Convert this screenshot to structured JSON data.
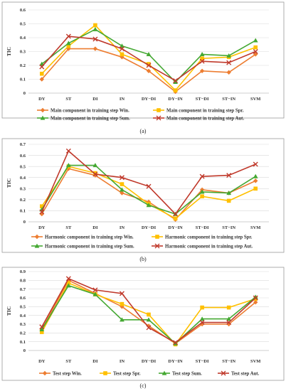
{
  "chart_data": [
    {
      "type": "line",
      "panel_caption": "(a)",
      "ylabel": "TIC",
      "ylim": [
        0,
        0.6
      ],
      "yticks": [
        "0",
        "0.1",
        "0.2",
        "0.3",
        "0.4",
        "0.5",
        "0.6"
      ],
      "grid": true,
      "legend_position": "bottom",
      "categories": [
        "DY",
        "ST",
        "DI",
        "IN",
        "DY−DI",
        "DY−IN",
        "ST−DI",
        "ST−IN",
        "SVM"
      ],
      "series": [
        {
          "name": "Main component in training step Win.",
          "color": "#ed7d31",
          "marker": "diamond",
          "values": [
            0.1,
            0.32,
            0.32,
            0.26,
            0.16,
            0.01,
            0.16,
            0.15,
            0.28
          ]
        },
        {
          "name": "Main component in training step Spr.",
          "color": "#ffc000",
          "marker": "square",
          "values": [
            0.14,
            0.34,
            0.49,
            0.28,
            0.21,
            0.02,
            0.25,
            0.26,
            0.33
          ]
        },
        {
          "name": "Main component in training step Sum.",
          "color": "#44a832",
          "marker": "triangle",
          "values": [
            0.21,
            0.36,
            0.46,
            0.34,
            0.28,
            0.08,
            0.28,
            0.27,
            0.38
          ]
        },
        {
          "name": "Main component in training step Aut.",
          "color": "#c0392b",
          "marker": "x",
          "values": [
            0.19,
            0.41,
            0.39,
            0.32,
            0.2,
            0.09,
            0.23,
            0.22,
            0.3
          ]
        }
      ]
    },
    {
      "type": "line",
      "panel_caption": "(b)",
      "ylabel": "TIC",
      "ylim": [
        0,
        0.7
      ],
      "yticks": [
        "0",
        "0.1",
        "0.2",
        "0.3",
        "0.4",
        "0.5",
        "0.6",
        "0.7"
      ],
      "grid": true,
      "legend_position": "bottom",
      "categories": [
        "DY",
        "ST",
        "DI",
        "IN",
        "DY−DI",
        "DY−IN",
        "ST−DI",
        "ST−IN",
        "SVM"
      ],
      "series": [
        {
          "name": "Harmonic component in training step Win.",
          "color": "#ed7d31",
          "marker": "diamond",
          "values": [
            0.07,
            0.48,
            0.42,
            0.26,
            0.18,
            0.02,
            0.29,
            0.26,
            0.37
          ]
        },
        {
          "name": "Harmonic component in training step Spr.",
          "color": "#ffc000",
          "marker": "square",
          "values": [
            0.14,
            0.5,
            0.44,
            0.34,
            0.16,
            0.03,
            0.23,
            0.19,
            0.3
          ]
        },
        {
          "name": "Harmonic component in training step Sum.",
          "color": "#44a832",
          "marker": "triangle",
          "values": [
            0.11,
            0.51,
            0.51,
            0.29,
            0.15,
            0.07,
            0.27,
            0.26,
            0.41
          ]
        },
        {
          "name": "Harmonic component in training step Aut.",
          "color": "#c0392b",
          "marker": "x",
          "values": [
            0.09,
            0.64,
            0.43,
            0.4,
            0.32,
            0.07,
            0.41,
            0.42,
            0.52
          ]
        }
      ]
    },
    {
      "type": "line",
      "panel_caption": "(c)",
      "ylabel": "TIC",
      "ylim": [
        0,
        0.9
      ],
      "yticks": [
        "0",
        "0.1",
        "0.2",
        "0.3",
        "0.4",
        "0.5",
        "0.6",
        "0.7",
        "0.8",
        "0.9"
      ],
      "grid": true,
      "legend_position": "bottom",
      "categories": [
        "DY",
        "ST",
        "DI",
        "IN",
        "DY−DI",
        "DY−IN",
        "ST−DI",
        "ST−IN",
        "SVM"
      ],
      "series": [
        {
          "name": "Test step Win.",
          "color": "#ed7d31",
          "marker": "diamond",
          "values": [
            0.24,
            0.8,
            0.65,
            0.5,
            0.28,
            0.08,
            0.3,
            0.3,
            0.55
          ]
        },
        {
          "name": "Test step Spr.",
          "color": "#ffc000",
          "marker": "square",
          "values": [
            0.21,
            0.77,
            0.64,
            0.53,
            0.41,
            0.07,
            0.49,
            0.49,
            0.59
          ]
        },
        {
          "name": "Test step Sum.",
          "color": "#44a832",
          "marker": "triangle",
          "values": [
            0.24,
            0.74,
            0.64,
            0.35,
            0.35,
            0.08,
            0.36,
            0.36,
            0.61
          ]
        },
        {
          "name": "Test step Aut.",
          "color": "#c0392b",
          "marker": "x",
          "values": [
            0.27,
            0.82,
            0.69,
            0.65,
            0.26,
            0.09,
            0.32,
            0.32,
            0.6
          ]
        }
      ]
    }
  ]
}
